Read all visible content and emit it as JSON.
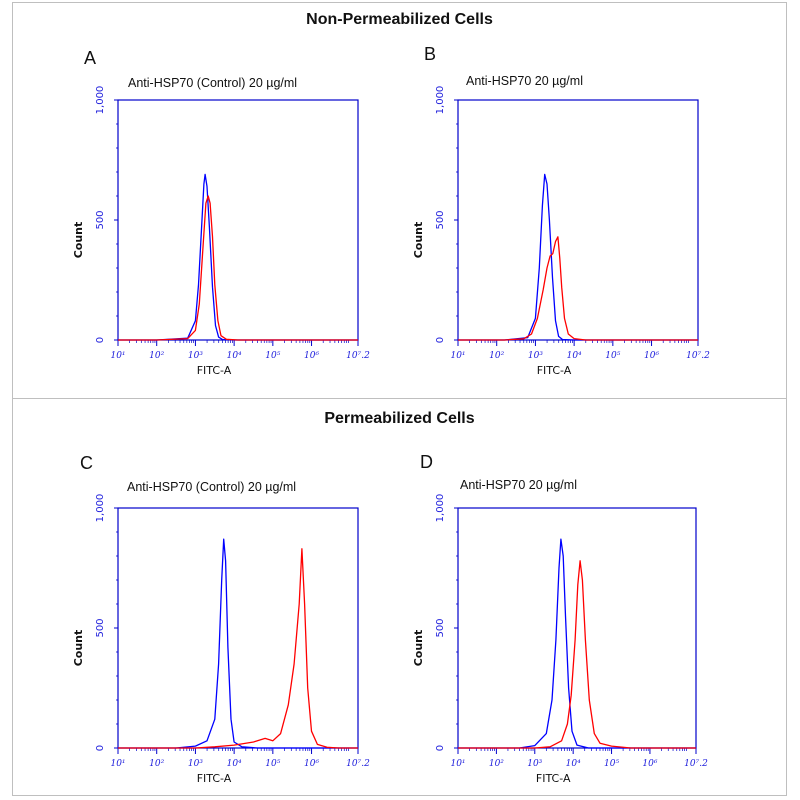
{
  "sections": [
    {
      "title": "Non-Permeabilized Cells"
    },
    {
      "title": "Permeabilized Cells"
    }
  ],
  "colors": {
    "control": "#0000ff",
    "antibody": "#ff0000",
    "axis": "#0000cc",
    "tick_text": "#2222dd"
  },
  "chart_data": [
    {
      "panel": "A",
      "label": "Anti-HSP70 (Control) 20 µg/ml",
      "type": "line",
      "xlabel": "FITC-A",
      "ylabel": "Count",
      "xscale": "log",
      "xlim": [
        1,
        7.2
      ],
      "ylim": [
        0,
        1000
      ],
      "yticks": [
        "0",
        "500",
        "1,000"
      ],
      "xticks": [
        "10¹",
        "10²",
        "10³",
        "10⁴",
        "10⁵",
        "10⁶",
        "10⁷.2"
      ],
      "series": [
        {
          "color": "blue",
          "points": [
            [
              1.0,
              0
            ],
            [
              2.0,
              0
            ],
            [
              2.8,
              8
            ],
            [
              3.0,
              80
            ],
            [
              3.08,
              230
            ],
            [
              3.16,
              470
            ],
            [
              3.22,
              650
            ],
            [
              3.25,
              690
            ],
            [
              3.3,
              640
            ],
            [
              3.36,
              470
            ],
            [
              3.44,
              220
            ],
            [
              3.52,
              60
            ],
            [
              3.6,
              12
            ],
            [
              3.7,
              2
            ],
            [
              4.0,
              0
            ],
            [
              7.2,
              0
            ]
          ]
        },
        {
          "color": "red",
          "points": [
            [
              1.0,
              0
            ],
            [
              2.0,
              0
            ],
            [
              2.8,
              6
            ],
            [
              3.0,
              40
            ],
            [
              3.1,
              150
            ],
            [
              3.2,
              400
            ],
            [
              3.27,
              570
            ],
            [
              3.33,
              600
            ],
            [
              3.38,
              570
            ],
            [
              3.44,
              430
            ],
            [
              3.5,
              230
            ],
            [
              3.58,
              80
            ],
            [
              3.66,
              18
            ],
            [
              3.8,
              3
            ],
            [
              4.1,
              0
            ],
            [
              7.2,
              0
            ]
          ]
        }
      ]
    },
    {
      "panel": "B",
      "label": "Anti-HSP70  20 µg/ml",
      "type": "line",
      "xlabel": "FITC-A",
      "ylabel": "Count",
      "xscale": "log",
      "xlim": [
        1,
        7.2
      ],
      "ylim": [
        0,
        1000
      ],
      "yticks": [
        "0",
        "500",
        "1,000"
      ],
      "xticks": [
        "10¹",
        "10²",
        "10³",
        "10⁴",
        "10⁵",
        "10⁶",
        "10⁷.2"
      ],
      "series": [
        {
          "color": "blue",
          "points": [
            [
              1.0,
              0
            ],
            [
              2.2,
              0
            ],
            [
              2.8,
              10
            ],
            [
              3.0,
              90
            ],
            [
              3.1,
              300
            ],
            [
              3.18,
              560
            ],
            [
              3.24,
              690
            ],
            [
              3.3,
              650
            ],
            [
              3.36,
              500
            ],
            [
              3.44,
              260
            ],
            [
              3.52,
              80
            ],
            [
              3.6,
              15
            ],
            [
              3.7,
              2
            ],
            [
              4.0,
              0
            ],
            [
              7.2,
              0
            ]
          ]
        },
        {
          "color": "red",
          "points": [
            [
              1.0,
              0
            ],
            [
              2.2,
              0
            ],
            [
              2.7,
              5
            ],
            [
              2.9,
              25
            ],
            [
              3.05,
              90
            ],
            [
              3.2,
              210
            ],
            [
              3.3,
              300
            ],
            [
              3.38,
              350
            ],
            [
              3.45,
              360
            ],
            [
              3.52,
              410
            ],
            [
              3.58,
              430
            ],
            [
              3.63,
              340
            ],
            [
              3.68,
              220
            ],
            [
              3.75,
              90
            ],
            [
              3.85,
              25
            ],
            [
              4.0,
              6
            ],
            [
              4.3,
              0
            ],
            [
              7.2,
              0
            ]
          ]
        }
      ]
    },
    {
      "panel": "C",
      "label": "Anti-HSP70 (Control) 20 µg/ml",
      "type": "line",
      "xlabel": "FITC-A",
      "ylabel": "Count",
      "xscale": "log",
      "xlim": [
        1,
        7.2
      ],
      "ylim": [
        0,
        1000
      ],
      "yticks": [
        "0",
        "500",
        "1,000"
      ],
      "xticks": [
        "10¹",
        "10²",
        "10³",
        "10⁴",
        "10⁵",
        "10⁶",
        "10⁷.2"
      ],
      "series": [
        {
          "color": "blue",
          "points": [
            [
              1.0,
              0
            ],
            [
              2.5,
              0
            ],
            [
              3.0,
              8
            ],
            [
              3.3,
              30
            ],
            [
              3.5,
              120
            ],
            [
              3.6,
              350
            ],
            [
              3.68,
              700
            ],
            [
              3.73,
              870
            ],
            [
              3.78,
              780
            ],
            [
              3.84,
              420
            ],
            [
              3.92,
              120
            ],
            [
              4.0,
              25
            ],
            [
              4.2,
              5
            ],
            [
              4.6,
              0
            ],
            [
              7.2,
              0
            ]
          ]
        },
        {
          "color": "red",
          "points": [
            [
              1.0,
              0
            ],
            [
              3.0,
              0
            ],
            [
              3.5,
              5
            ],
            [
              4.0,
              12
            ],
            [
              4.5,
              25
            ],
            [
              4.8,
              40
            ],
            [
              5.0,
              30
            ],
            [
              5.2,
              60
            ],
            [
              5.4,
              180
            ],
            [
              5.55,
              350
            ],
            [
              5.68,
              600
            ],
            [
              5.75,
              830
            ],
            [
              5.82,
              600
            ],
            [
              5.9,
              250
            ],
            [
              6.0,
              70
            ],
            [
              6.15,
              15
            ],
            [
              6.4,
              3
            ],
            [
              6.7,
              0
            ],
            [
              7.2,
              0
            ]
          ]
        }
      ]
    },
    {
      "panel": "D",
      "label": "Anti-HSP70  20 µg/ml",
      "type": "line",
      "xlabel": "FITC-A",
      "ylabel": "Count",
      "xscale": "log",
      "xlim": [
        1,
        7.2
      ],
      "ylim": [
        0,
        1000
      ],
      "yticks": [
        "0",
        "500",
        "1,000"
      ],
      "xticks": [
        "10¹",
        "10²",
        "10³",
        "10⁴",
        "10⁵",
        "10⁶",
        "10⁷.2"
      ],
      "series": [
        {
          "color": "blue",
          "points": [
            [
              1.0,
              0
            ],
            [
              2.6,
              0
            ],
            [
              3.0,
              10
            ],
            [
              3.3,
              60
            ],
            [
              3.45,
              200
            ],
            [
              3.55,
              450
            ],
            [
              3.63,
              750
            ],
            [
              3.68,
              870
            ],
            [
              3.74,
              800
            ],
            [
              3.8,
              550
            ],
            [
              3.88,
              250
            ],
            [
              3.97,
              70
            ],
            [
              4.1,
              12
            ],
            [
              4.4,
              0
            ],
            [
              7.2,
              0
            ]
          ]
        },
        {
          "color": "red",
          "points": [
            [
              1.0,
              0
            ],
            [
              3.0,
              0
            ],
            [
              3.4,
              5
            ],
            [
              3.7,
              30
            ],
            [
              3.85,
              100
            ],
            [
              3.95,
              220
            ],
            [
              4.05,
              450
            ],
            [
              4.12,
              680
            ],
            [
              4.18,
              780
            ],
            [
              4.24,
              700
            ],
            [
              4.32,
              450
            ],
            [
              4.42,
              200
            ],
            [
              4.55,
              60
            ],
            [
              4.7,
              20
            ],
            [
              5.0,
              8
            ],
            [
              5.5,
              0
            ],
            [
              7.2,
              0
            ]
          ]
        }
      ]
    }
  ]
}
